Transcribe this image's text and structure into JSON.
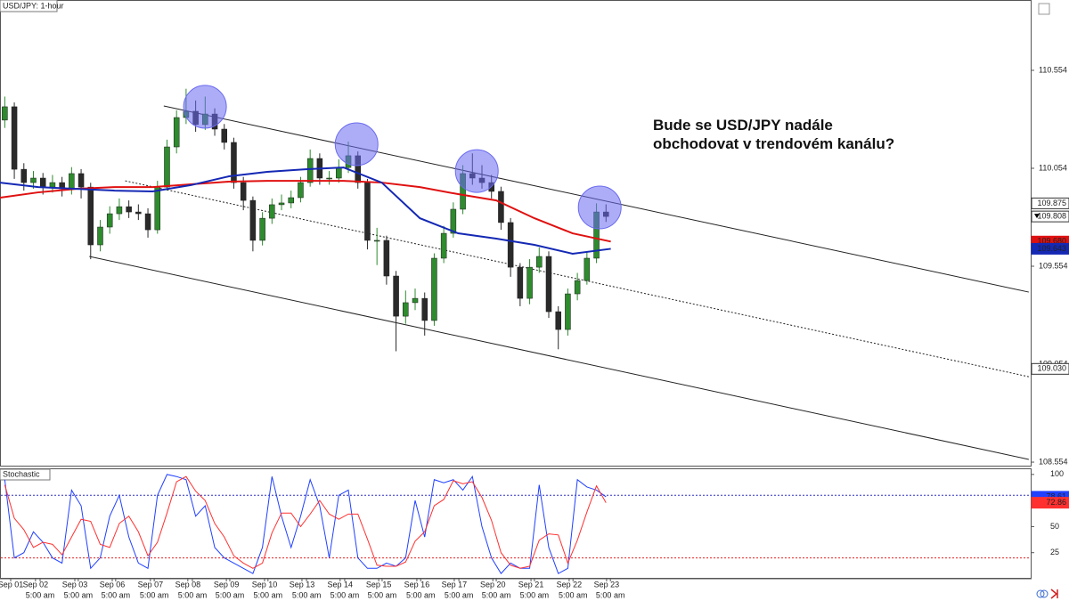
{
  "chart_data": [
    {
      "type": "candlestick",
      "title": "USD/JPY: 1-hour",
      "up_color": "#2e8b2e",
      "down_color": "#2a2a2a",
      "xlim": [
        0,
        27
      ],
      "ylim": [
        108.536,
        110.913
      ],
      "yticks": [
        110.554,
        110.054,
        109.554,
        109.054,
        108.554
      ],
      "xticks": [
        {
          "value": 0.28,
          "label": "Sep 01"
        },
        {
          "value": 0.93,
          "label": "Sep 02"
        },
        {
          "value": 1.96,
          "label": "Sep 03"
        },
        {
          "value": 2.94,
          "label": "Sep 06"
        },
        {
          "value": 3.94,
          "label": "Sep 07"
        },
        {
          "value": 4.92,
          "label": "Sep 08"
        },
        {
          "value": 5.93,
          "label": "Sep 09"
        },
        {
          "value": 6.93,
          "label": "Sep 10"
        },
        {
          "value": 7.91,
          "label": "Sep 13"
        },
        {
          "value": 8.91,
          "label": "Sep 14"
        },
        {
          "value": 9.92,
          "label": "Sep 15"
        },
        {
          "value": 10.92,
          "label": "Sep 16"
        },
        {
          "value": 11.9,
          "label": "Sep 17"
        },
        {
          "value": 12.91,
          "label": "Sep 20"
        },
        {
          "value": 13.91,
          "label": "Sep 21"
        },
        {
          "value": 14.91,
          "label": "Sep 22"
        },
        {
          "value": 15.89,
          "label": "Sep 23"
        }
      ],
      "xticks2": [
        {
          "value": 1.05,
          "label": "5:00 am"
        },
        {
          "value": 2.05,
          "label": "5:00 am"
        },
        {
          "value": 3.03,
          "label": "5:00 am"
        },
        {
          "value": 4.04,
          "label": "5:00 am"
        },
        {
          "value": 5.04,
          "label": "5:00 am"
        },
        {
          "value": 6.02,
          "label": "5:00 am"
        },
        {
          "value": 7.02,
          "label": "5:00 am"
        },
        {
          "value": 8.03,
          "label": "5:00 am"
        },
        {
          "value": 9.03,
          "label": "5:00 am"
        },
        {
          "value": 10.01,
          "label": "5:00 am"
        },
        {
          "value": 11.02,
          "label": "5:00 am"
        },
        {
          "value": 12.02,
          "label": "5:00 am"
        },
        {
          "value": 13.0,
          "label": "5:00 am"
        },
        {
          "value": 14.0,
          "label": "5:00 am"
        },
        {
          "value": 15.01,
          "label": "5:00 am"
        },
        {
          "value": 15.99,
          "label": "5:00 am"
        }
      ],
      "x": [
        0.125,
        0.375,
        0.625,
        0.875,
        1.125,
        1.375,
        1.625,
        1.875,
        2.125,
        2.375,
        2.625,
        2.875,
        3.125,
        3.375,
        3.625,
        3.875,
        4.125,
        4.375,
        4.625,
        4.875,
        5.125,
        5.375,
        5.625,
        5.875,
        6.125,
        6.375,
        6.625,
        6.875,
        7.125,
        7.375,
        7.625,
        7.875,
        8.125,
        8.375,
        8.625,
        8.875,
        9.125,
        9.375,
        9.625,
        9.875,
        10.125,
        10.375,
        10.625,
        10.875,
        11.125,
        11.375,
        11.625,
        11.875,
        12.125,
        12.375,
        12.625,
        12.875,
        13.125,
        13.375,
        13.625,
        13.875,
        14.125,
        14.375,
        14.625,
        14.875,
        15.125,
        15.375,
        15.625,
        15.875
      ],
      "open": [
        110.3,
        110.368,
        110.049,
        109.981,
        110.004,
        109.958,
        109.981,
        109.949,
        110.027,
        109.958,
        109.663,
        109.754,
        109.822,
        109.858,
        109.831,
        109.822,
        109.74,
        109.958,
        110.163,
        110.313,
        110.345,
        110.277,
        110.331,
        110.254,
        110.186,
        109.981,
        109.89,
        109.686,
        109.799,
        109.868,
        109.877,
        109.904,
        109.981,
        110.104,
        110.004,
        110.004,
        110.058,
        110.118,
        109.981,
        109.686,
        109.686,
        109.504,
        109.299,
        109.368,
        109.39,
        109.277,
        109.595,
        109.722,
        109.845,
        110.027,
        110.004,
        109.981,
        109.936,
        109.777,
        109.549,
        109.39,
        109.549,
        109.604,
        109.322,
        109.231,
        109.413,
        109.481,
        109.595,
        109.831
      ],
      "high": [
        110.42,
        110.39,
        110.08,
        110.04,
        110.03,
        110.02,
        110.01,
        110.06,
        110.05,
        109.98,
        109.79,
        109.86,
        109.9,
        109.89,
        109.87,
        109.85,
        109.99,
        110.2,
        110.35,
        110.46,
        110.4,
        110.42,
        110.36,
        110.28,
        110.21,
        110.01,
        109.91,
        109.83,
        109.9,
        109.92,
        109.94,
        110.01,
        110.15,
        110.13,
        110.04,
        110.1,
        110.19,
        110.14,
        110.0,
        109.75,
        109.71,
        109.53,
        109.43,
        109.44,
        109.42,
        109.62,
        109.76,
        109.88,
        110.07,
        110.13,
        110.07,
        110.02,
        109.96,
        109.8,
        109.57,
        109.59,
        109.65,
        109.63,
        109.35,
        109.44,
        109.52,
        109.63,
        109.875,
        109.87
      ],
      "low": [
        110.26,
        110.0,
        109.94,
        109.95,
        109.92,
        109.93,
        109.91,
        109.92,
        109.9,
        109.59,
        109.63,
        109.72,
        109.79,
        109.8,
        109.79,
        109.7,
        109.72,
        109.94,
        110.13,
        110.28,
        110.24,
        110.25,
        110.22,
        110.15,
        109.95,
        109.84,
        109.63,
        109.66,
        109.77,
        109.84,
        109.85,
        109.88,
        109.96,
        109.97,
        109.97,
        109.98,
        110.03,
        109.95,
        109.64,
        109.56,
        109.46,
        109.12,
        109.26,
        109.33,
        109.2,
        109.25,
        109.57,
        109.7,
        109.82,
        109.97,
        109.95,
        109.9,
        109.74,
        109.5,
        109.35,
        109.36,
        109.52,
        109.29,
        109.13,
        109.2,
        109.38,
        109.46,
        109.57,
        109.78
      ],
      "close": [
        110.368,
        110.049,
        109.981,
        110.004,
        109.958,
        109.981,
        109.949,
        110.027,
        109.958,
        109.663,
        109.754,
        109.822,
        109.858,
        109.831,
        109.822,
        109.74,
        109.958,
        110.163,
        110.313,
        110.345,
        110.277,
        110.331,
        110.254,
        110.186,
        109.981,
        109.89,
        109.686,
        109.799,
        109.868,
        109.877,
        109.904,
        109.981,
        110.104,
        110.004,
        110.004,
        110.058,
        110.118,
        109.981,
        109.686,
        109.686,
        109.504,
        109.299,
        109.368,
        109.39,
        109.277,
        109.595,
        109.722,
        109.845,
        110.027,
        110.004,
        109.981,
        109.936,
        109.777,
        109.549,
        109.39,
        109.549,
        109.604,
        109.322,
        109.231,
        109.413,
        109.481,
        109.595,
        109.831,
        109.808
      ],
      "series": [
        {
          "color": "#e01010",
          "x": [
            0,
            1,
            2,
            3,
            4,
            5,
            6,
            7,
            8,
            9,
            10,
            11,
            12,
            13,
            14,
            15,
            16
          ],
          "values": [
            109.904,
            109.931,
            109.949,
            109.958,
            109.958,
            109.972,
            109.986,
            109.99,
            109.99,
            109.99,
            109.981,
            109.958,
            109.922,
            109.89,
            109.799,
            109.722,
            109.68
          ]
        },
        {
          "color": "#1428b4",
          "x": [
            0,
            1,
            2,
            3,
            4,
            5,
            6,
            7,
            8,
            9,
            10,
            11,
            12,
            13,
            14,
            15,
            16
          ],
          "values": [
            109.981,
            109.958,
            109.949,
            109.94,
            109.936,
            109.968,
            110.013,
            110.036,
            110.049,
            110.058,
            109.981,
            109.799,
            109.722,
            109.695,
            109.663,
            109.618,
            109.643
          ]
        }
      ],
      "trendlines": [
        {
          "x": [
            4.29,
            26.95
          ],
          "y": [
            110.372,
            109.422
          ],
          "style": "solid"
        },
        {
          "x": [
            3.28,
            26.95
          ],
          "y": [
            109.99,
            108.99
          ],
          "style": "dotted"
        },
        {
          "x": [
            2.34,
            26.95
          ],
          "y": [
            109.604,
            108.568
          ],
          "style": "solid"
        }
      ],
      "highlight_color": "#6a6af0",
      "highlights": [
        {
          "x": 5.37,
          "y": 110.368
        },
        {
          "x": 9.34,
          "y": 110.177
        },
        {
          "x": 12.49,
          "y": 110.04
        },
        {
          "x": 15.71,
          "y": 109.854
        }
      ],
      "annotation": [
        "Bude se USD/JPY nadále",
        "obchodovat v trendovém kanálu?"
      ],
      "price_labels": [
        {
          "value": 109.875,
          "label": "109.875",
          "color": "#ffffff"
        },
        {
          "value": 109.808,
          "label": "109.808",
          "color": "#ffffff",
          "arrow": true
        },
        {
          "value": 109.68,
          "label": "109.680",
          "color": "#e01010"
        },
        {
          "value": 109.643,
          "label": "109.643",
          "color": "#1428b4"
        },
        {
          "value": 109.03,
          "label": "109.030",
          "color": "#ffffff"
        }
      ]
    },
    {
      "type": "line",
      "title": "Stochastic",
      "ylim": [
        0,
        105
      ],
      "yticks": [
        25,
        50,
        100
      ],
      "levels": [
        {
          "value": 80,
          "color": "#3030c0"
        },
        {
          "value": 20,
          "color": "#e02020"
        }
      ],
      "series": [
        {
          "color": "#2040ff",
          "values": [
            95,
            20,
            25,
            45,
            35,
            20,
            15,
            85,
            70,
            10,
            20,
            60,
            80,
            40,
            15,
            10,
            80,
            100,
            98,
            95,
            60,
            70,
            30,
            20,
            15,
            10,
            5,
            30,
            98,
            60,
            30,
            60,
            95,
            70,
            20,
            80,
            85,
            20,
            10,
            10,
            15,
            12,
            20,
            75,
            40,
            95,
            92,
            95,
            85,
            98,
            50,
            20,
            5,
            15,
            10,
            10,
            90,
            30,
            5,
            10,
            95,
            88,
            85,
            78.61
          ]
        },
        {
          "color": "#ff3030",
          "values": [
            90,
            58,
            47,
            30,
            35,
            33,
            23,
            40,
            57,
            55,
            33,
            30,
            53,
            60,
            45,
            22,
            35,
            63,
            93,
            98,
            84,
            75,
            53,
            40,
            22,
            15,
            10,
            15,
            44,
            63,
            63,
            50,
            62,
            75,
            62,
            57,
            62,
            62,
            38,
            13,
            12,
            12,
            16,
            36,
            45,
            70,
            76,
            94,
            91,
            93,
            78,
            56,
            25,
            13,
            10,
            12,
            37,
            43,
            42,
            15,
            37,
            64,
            89,
            72.86
          ]
        }
      ],
      "price_labels": [
        {
          "value": 78.61,
          "label": "78.61",
          "color": "#2040ff"
        },
        {
          "value": 72.86,
          "label": "72.86",
          "color": "#ff3030"
        }
      ]
    }
  ]
}
